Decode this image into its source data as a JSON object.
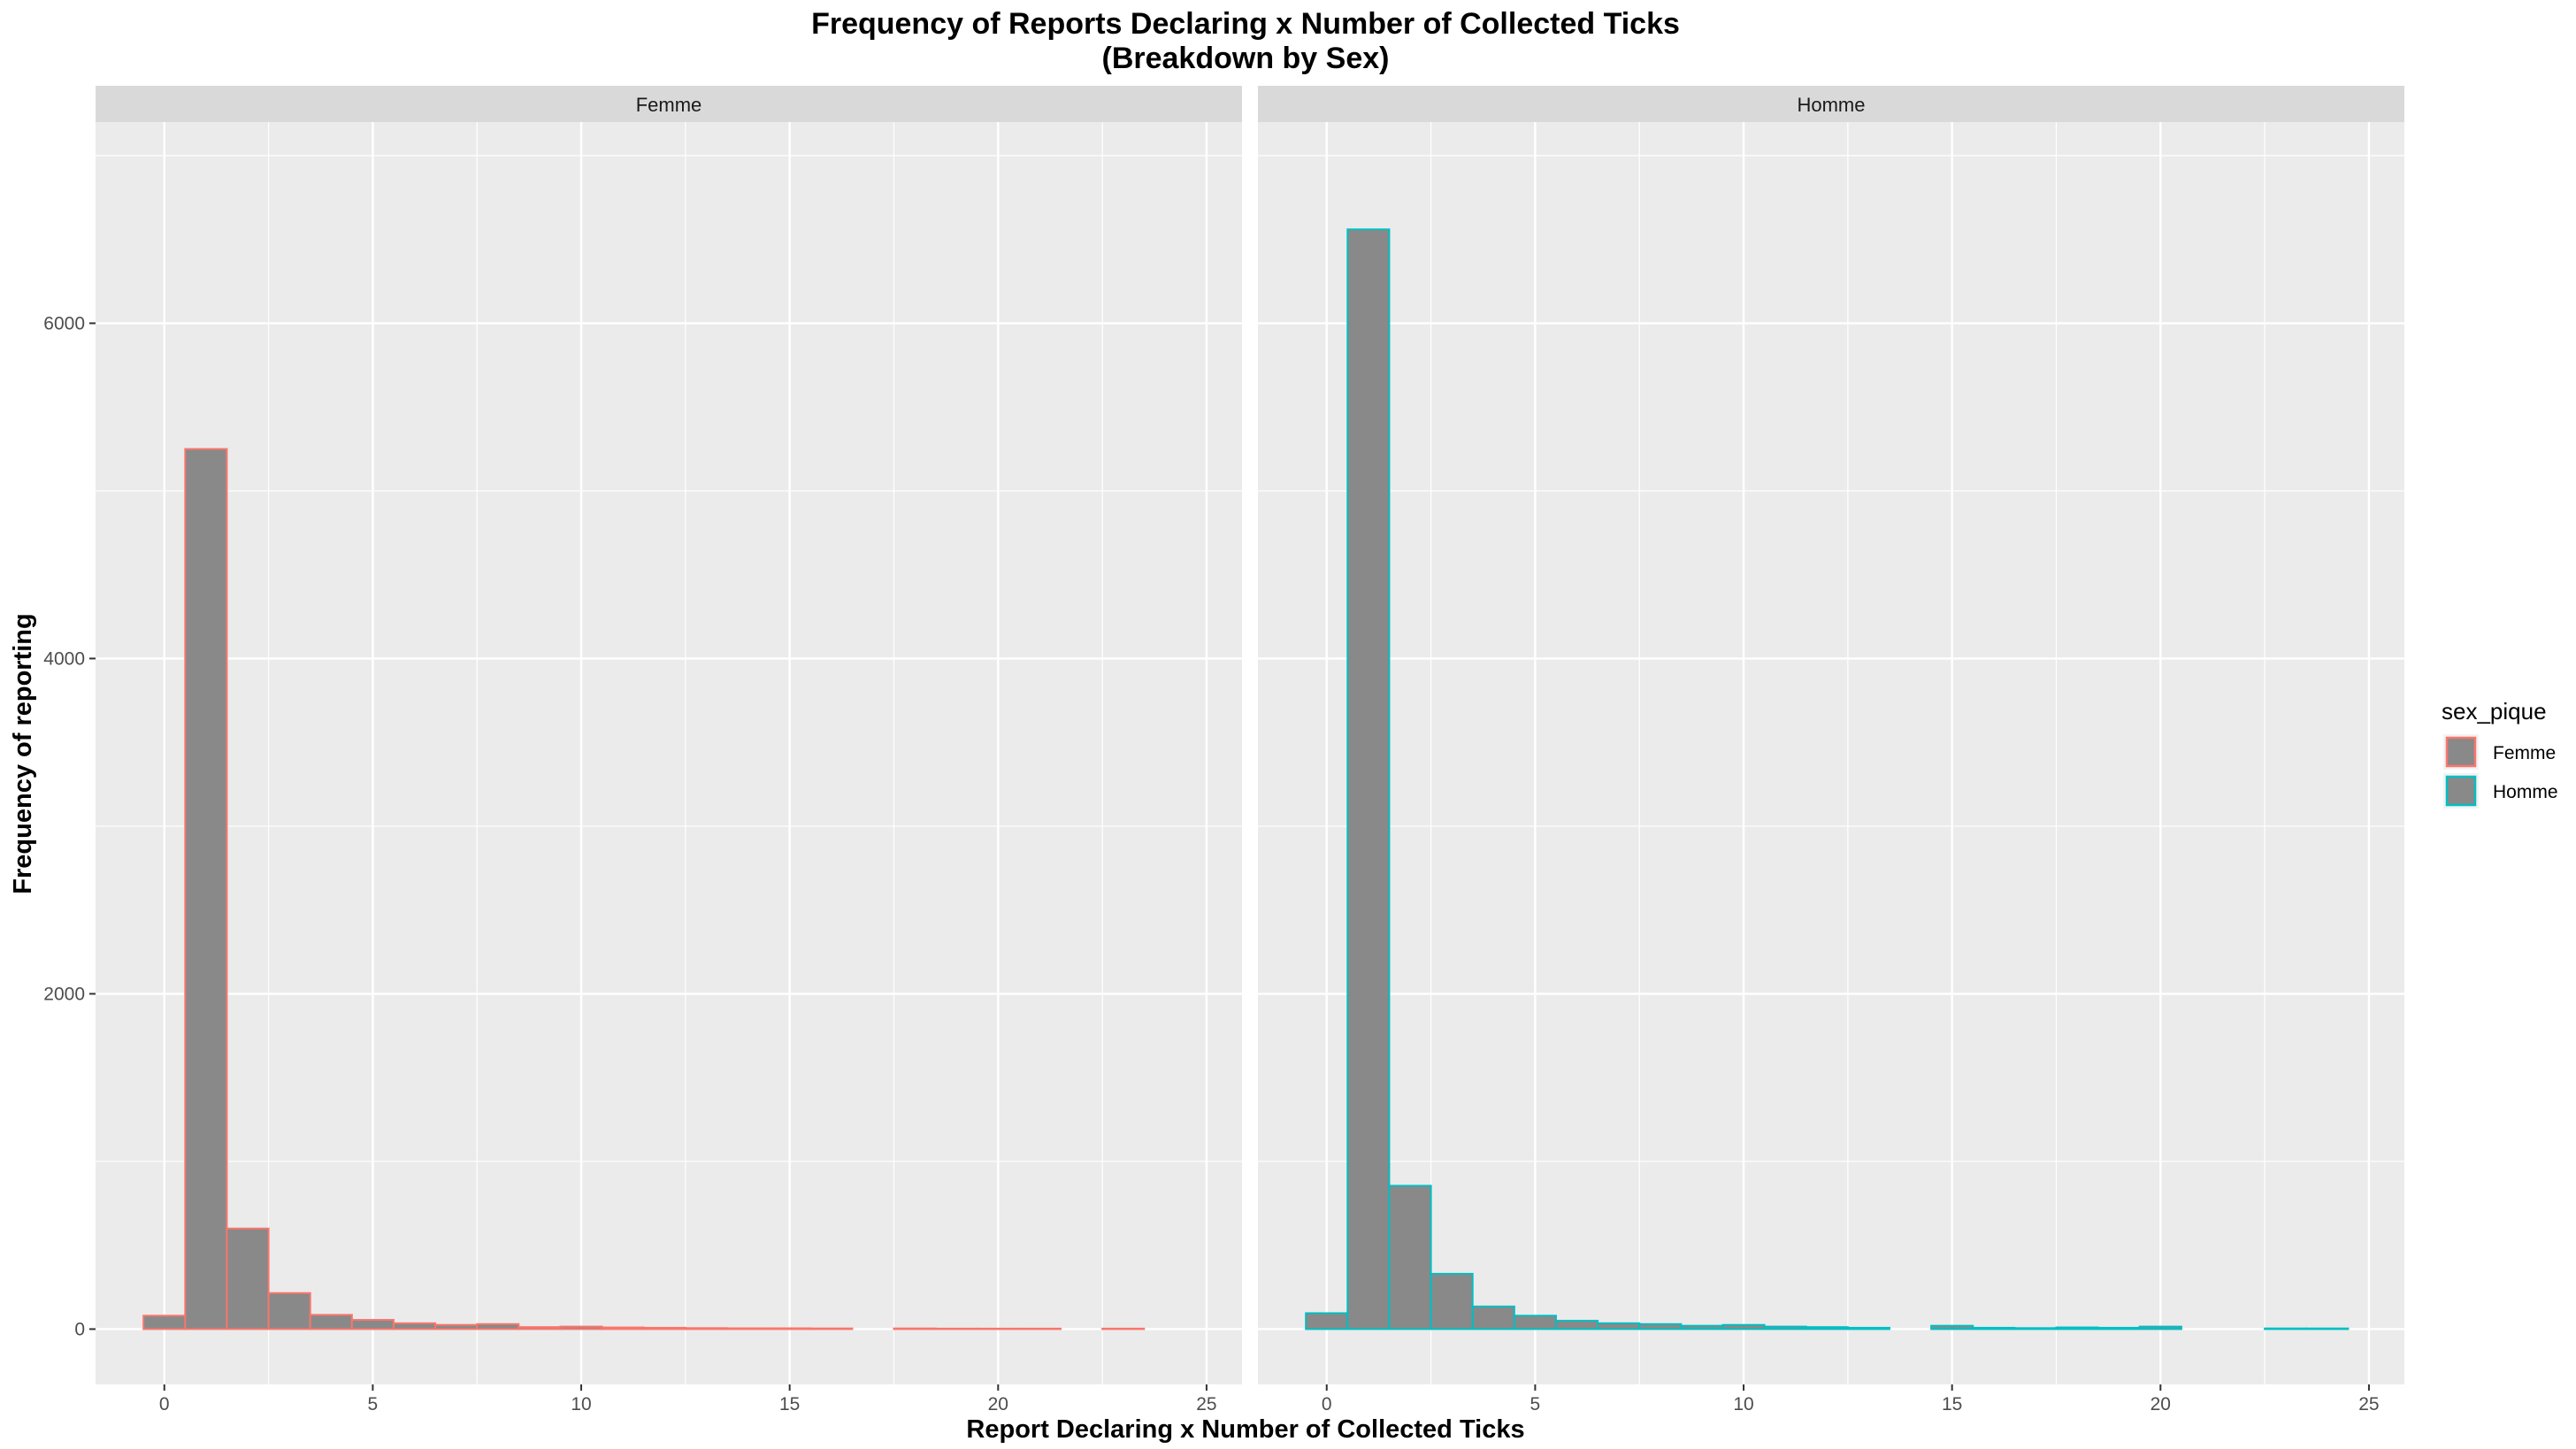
{
  "chart_data": {
    "type": "bar",
    "title": "Frequency of Reports Declaring x Number of Collected Ticks",
    "subtitle": "(Breakdown by Sex)",
    "xlabel": "Report Declaring x Number of Collected Ticks",
    "ylabel": "Frequency of reporting",
    "xlim": [
      -1.65,
      25.85
    ],
    "ylim": [
      -330,
      7200
    ],
    "x_ticks": [
      0,
      5,
      10,
      15,
      20,
      25
    ],
    "y_ticks": [
      0,
      2000,
      4000,
      6000
    ],
    "grid": true,
    "legend_title": "sex_pique",
    "legend_position": "right",
    "bar_fill": "#898989",
    "panel_background": "#ebebeb",
    "strip_background": "#d9d9d9",
    "grid_color": "#ffffff",
    "series": [
      {
        "name": "Femme",
        "color": "#f8766d",
        "x": [
          0,
          1,
          2,
          3,
          4,
          5,
          6,
          7,
          8,
          9,
          10,
          11,
          12,
          13,
          14,
          15,
          16,
          18,
          19,
          20,
          21,
          23
        ],
        "values": [
          80,
          5250,
          600,
          215,
          85,
          55,
          35,
          25,
          30,
          12,
          15,
          10,
          8,
          6,
          5,
          5,
          4,
          4,
          3,
          3,
          3,
          3
        ]
      },
      {
        "name": "Homme",
        "color": "#00bfc4",
        "x": [
          0,
          1,
          2,
          3,
          4,
          5,
          6,
          7,
          8,
          9,
          10,
          11,
          12,
          13,
          15,
          16,
          17,
          18,
          19,
          20,
          23,
          24
        ],
        "values": [
          95,
          6560,
          855,
          330,
          135,
          80,
          50,
          35,
          30,
          20,
          25,
          15,
          12,
          8,
          20,
          8,
          6,
          10,
          8,
          15,
          4,
          4
        ]
      }
    ]
  }
}
